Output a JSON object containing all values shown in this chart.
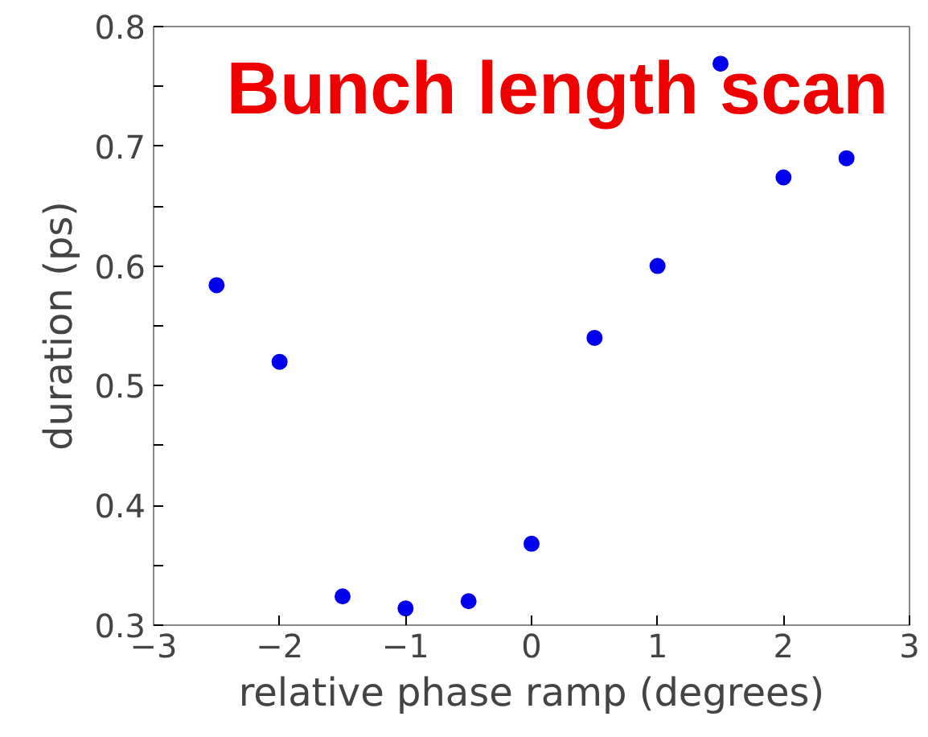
{
  "chart_data": {
    "type": "scatter",
    "title": "Bunch length scan",
    "xlabel": "relative phase ramp (degrees)",
    "ylabel": "duration (ps)",
    "x": [
      -2.5,
      -2,
      -1.5,
      -1,
      -0.5,
      0,
      0.5,
      1,
      1.5,
      2,
      2.5
    ],
    "series": [
      {
        "color": "#0000ee",
        "values": [
          0.584,
          0.52,
          0.324,
          0.314,
          0.32,
          0.368,
          0.54,
          0.6,
          0.769,
          0.674,
          0.69
        ]
      }
    ],
    "xlim": [
      -3,
      3
    ],
    "ylim": [
      0.3,
      0.8
    ],
    "xticks": [
      {
        "value": -3,
        "label": "−3"
      },
      {
        "value": -2,
        "label": "−2"
      },
      {
        "value": -1,
        "label": "−1"
      },
      0,
      1,
      2,
      3
    ],
    "yticks": [
      0.3,
      {
        "value": 0.35,
        "label": null
      },
      0.4,
      {
        "value": 0.45,
        "label": null
      },
      0.5,
      {
        "value": 0.55,
        "label": null
      },
      0.6,
      {
        "value": 0.65,
        "label": null
      },
      0.7,
      {
        "value": 0.75,
        "label": null
      },
      0.8
    ],
    "grid": false,
    "marker": "circle"
  }
}
